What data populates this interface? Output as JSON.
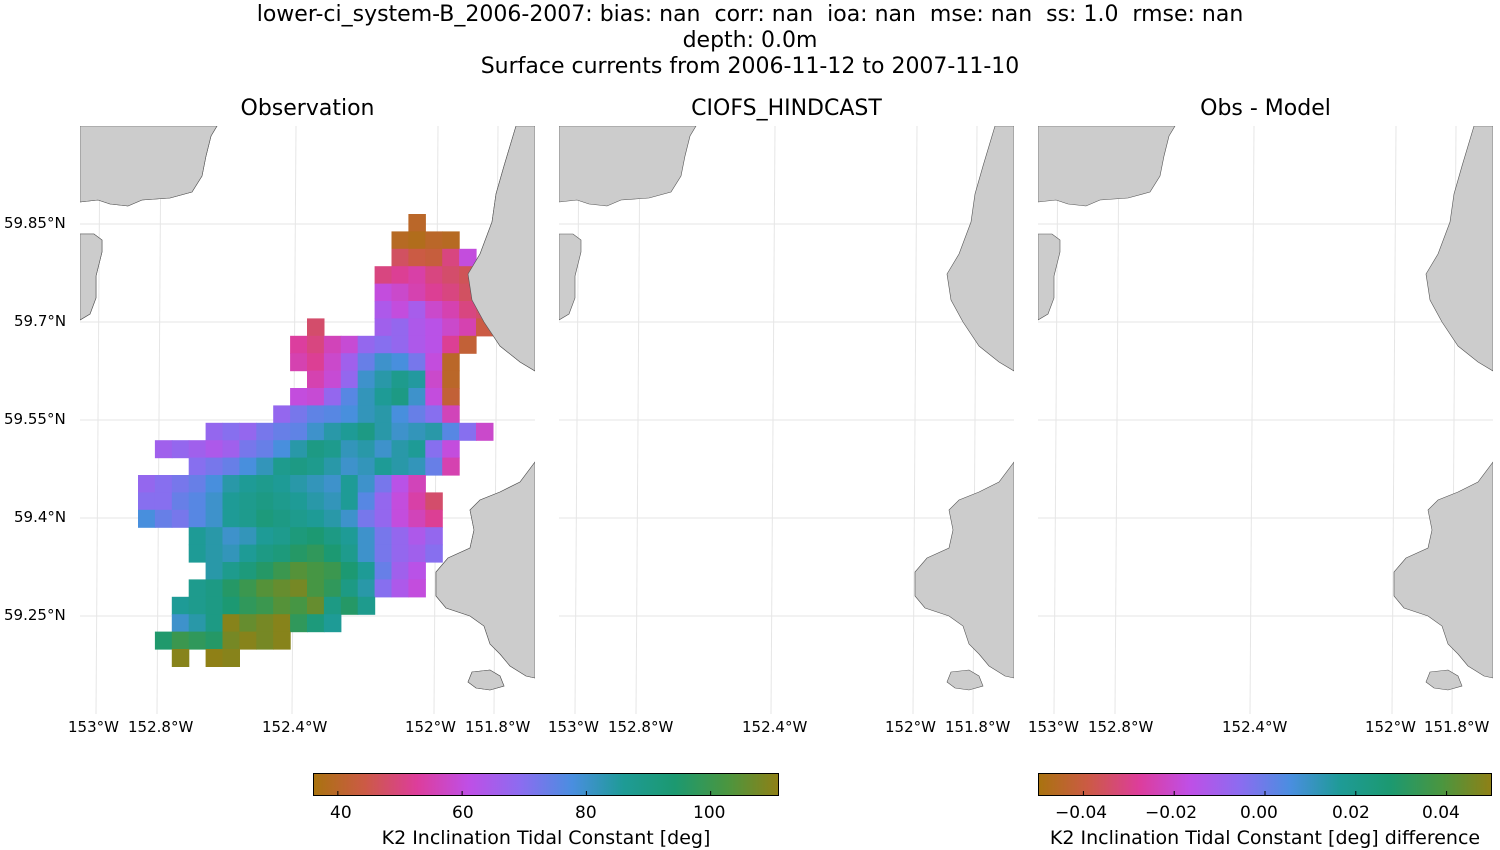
{
  "title": {
    "line1": "lower-ci_system-B_2006-2007: bias: nan  corr: nan  ioa: nan  mse: nan  ss: 1.0  rmse: nan",
    "line2": "depth: 0.0m",
    "line3": "Surface currents from 2006-11-12 to 2007-11-10"
  },
  "panels": [
    {
      "title": "Observation"
    },
    {
      "title": "CIOFS_HINDCAST"
    },
    {
      "title": "Obs - Model"
    }
  ],
  "lat_ticks": [
    "59.85°N",
    "59.7°N",
    "59.55°N",
    "59.4°N",
    "59.25°N"
  ],
  "lon_ticks": [
    "153°W",
    "152.8°W",
    "152.4°W",
    "152°W",
    "151.8°W"
  ],
  "colorbars": [
    {
      "label": "K2 Inclination Tidal Constant [deg]",
      "ticks": [
        "40",
        "60",
        "80",
        "100"
      ],
      "tick_values": [
        40,
        60,
        80,
        100
      ],
      "range": [
        36,
        111
      ]
    },
    {
      "label": "K2 Inclination Tidal Constant [deg] difference",
      "ticks": [
        "−0.04",
        "−0.02",
        "0.00",
        "0.02",
        "0.04"
      ],
      "tick_values": [
        -0.04,
        -0.02,
        0.0,
        0.02,
        0.04
      ],
      "range": [
        -0.05,
        0.05
      ]
    }
  ],
  "colors": {
    "land": "#cccccc",
    "colormap": [
      "#a9730f",
      "#cc5a46",
      "#dd3d9b",
      "#bf4fe6",
      "#8c6cf0",
      "#4a8ee0",
      "#1e9b96",
      "#1c9970",
      "#4a9640",
      "#8f8016"
    ]
  },
  "observation_grid": {
    "lon0": -153.0,
    "lat0": 59.91,
    "dlon": 0.05,
    "dlat": 0.026,
    "rows": [
      {
        "lat_index": 0,
        "col_start": 16,
        "values": [
          40
        ]
      },
      {
        "lat_index": 1,
        "col_start": 15,
        "values": [
          39,
          38,
          40,
          39
        ]
      },
      {
        "lat_index": 2,
        "col_start": 15,
        "values": [
          47,
          44,
          43,
          50,
          60
        ]
      },
      {
        "lat_index": 3,
        "col_start": 14,
        "values": [
          50,
          52,
          54,
          50,
          48,
          46
        ]
      },
      {
        "lat_index": 4,
        "col_start": 14,
        "values": [
          60,
          58,
          55,
          52,
          50,
          47,
          48
        ]
      },
      {
        "lat_index": 5,
        "col_start": 14,
        "values": [
          64,
          60,
          65,
          58,
          55,
          50,
          48
        ]
      },
      {
        "lat_index": 6,
        "col_start": 10,
        "values": [
          48
        ]
      },
      {
        "lat_index": 6,
        "col_start": 14,
        "values": [
          66,
          68,
          64,
          62,
          58,
          55,
          44
        ]
      },
      {
        "lat_index": 7,
        "col_start": 9,
        "values": [
          53,
          50,
          56,
          59,
          68,
          70,
          68,
          64,
          62,
          52,
          42
        ]
      },
      {
        "lat_index": 8,
        "col_start": 9,
        "values": [
          55,
          52,
          58,
          66,
          74,
          80,
          78,
          72,
          60,
          40
        ]
      },
      {
        "lat_index": 9,
        "col_start": 10,
        "values": [
          55,
          59,
          68,
          80,
          84,
          88,
          85,
          58,
          40
        ]
      },
      {
        "lat_index": 10,
        "col_start": 9,
        "values": [
          60,
          59,
          68,
          76,
          82,
          86,
          90,
          80,
          60,
          42
        ]
      },
      {
        "lat_index": 11,
        "col_start": 8,
        "values": [
          68,
          72,
          75,
          76,
          78,
          82,
          84,
          78,
          74,
          70,
          56
        ]
      },
      {
        "lat_index": 12,
        "col_start": 4,
        "values": [
          68,
          70,
          68,
          72,
          74,
          75,
          80,
          84,
          86,
          90,
          84,
          80,
          82,
          84,
          76,
          70,
          58
        ]
      },
      {
        "lat_index": 13,
        "col_start": 1,
        "values": [
          66,
          68,
          66,
          64,
          66,
          72,
          74,
          78,
          84,
          90,
          88,
          82,
          84,
          80,
          84,
          86,
          70,
          60
        ]
      },
      {
        "lat_index": 14,
        "col_start": 3,
        "values": [
          70,
          72,
          74,
          78,
          82,
          88,
          90,
          88,
          84,
          80,
          82,
          86,
          84,
          82,
          74,
          55
        ]
      },
      {
        "lat_index": 15,
        "col_start": 0,
        "values": [
          68,
          70,
          72,
          74,
          78,
          84,
          86,
          88,
          86,
          84,
          82,
          80,
          86,
          80,
          72,
          62,
          56
        ]
      },
      {
        "lat_index": 16,
        "col_start": 0,
        "values": [
          70,
          70,
          74,
          76,
          80,
          86,
          88,
          90,
          88,
          86,
          84,
          82,
          86,
          76,
          68,
          60,
          54,
          48
        ]
      },
      {
        "lat_index": 17,
        "col_start": 0,
        "values": [
          78,
          74,
          72,
          76,
          80,
          86,
          88,
          92,
          90,
          88,
          86,
          84,
          80,
          72,
          68,
          60,
          56,
          52
        ]
      },
      {
        "lat_index": 18,
        "col_start": 3,
        "values": [
          86,
          84,
          80,
          82,
          86,
          88,
          92,
          94,
          90,
          86,
          80,
          72,
          68,
          64,
          68
        ]
      },
      {
        "lat_index": 19,
        "col_start": 3,
        "values": [
          86,
          84,
          82,
          86,
          90,
          92,
          96,
          98,
          94,
          88,
          80,
          72,
          68,
          66,
          70
        ]
      },
      {
        "lat_index": 20,
        "col_start": 4,
        "values": [
          84,
          88,
          92,
          96,
          100,
          104,
          102,
          100,
          94,
          86,
          74,
          66,
          62
        ]
      },
      {
        "lat_index": 21,
        "col_start": 3,
        "values": [
          88,
          90,
          96,
          100,
          104,
          106,
          108,
          102,
          98,
          90,
          84,
          70,
          64,
          60
        ]
      },
      {
        "lat_index": 22,
        "col_start": 2,
        "values": [
          86,
          88,
          90,
          94,
          98,
          100,
          104,
          102,
          106,
          90,
          96,
          88
        ]
      },
      {
        "lat_index": 23,
        "col_start": 2,
        "values": [
          80,
          84,
          90,
          110,
          106,
          108,
          110,
          98,
          92,
          86
        ]
      },
      {
        "lat_index": 24,
        "col_start": 1,
        "values": [
          95,
          100,
          98,
          96,
          108,
          110,
          108,
          110
        ]
      },
      {
        "lat_index": 25,
        "col_start": 2,
        "values": [
          110
        ]
      },
      {
        "lat_index": 25,
        "col_start": 4,
        "values": [
          112,
          110
        ]
      }
    ]
  }
}
